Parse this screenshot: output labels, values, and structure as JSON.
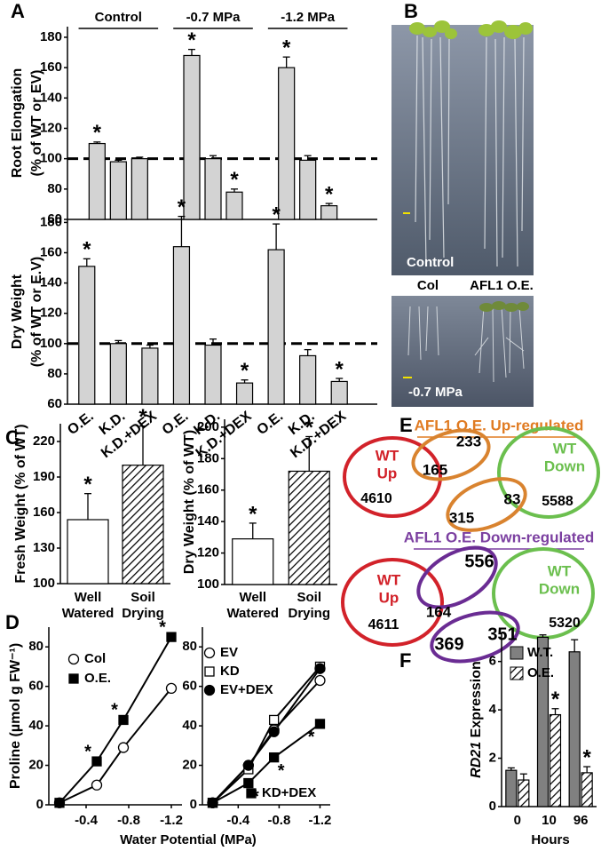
{
  "panel_labels": [
    "A",
    "B",
    "C",
    "D",
    "E",
    "F"
  ],
  "chart_data": [
    {
      "type": "bar",
      "ylabel": [
        "Root Elongation",
        "(% of WT or EV)"
      ],
      "groups": [
        "Control",
        "-0.7 MPa",
        "-1.2 MPa"
      ],
      "ylim": [
        60,
        187
      ],
      "yticks": [
        60,
        80,
        100,
        120,
        140,
        160,
        180
      ],
      "reference_line": 100,
      "series": [
        {
          "color": "#d3d3d3",
          "values": [
            110,
            98,
            100,
            168,
            100,
            78,
            160,
            99,
            69
          ],
          "errors": [
            1,
            1,
            1,
            4,
            2,
            2,
            7,
            3,
            1.5
          ],
          "markers": [
            "*",
            null,
            null,
            "*",
            null,
            "*",
            "*",
            null,
            "*"
          ]
        }
      ]
    },
    {
      "type": "bar",
      "ylabel": [
        "Dry Weight",
        "(% of WT or E.V)"
      ],
      "categories": [
        "O.E.",
        "K.D.",
        "K.D.+DEX",
        "O.E.",
        "K.D.",
        "K.D.+DEX",
        "O.E.",
        "K.D.",
        "K.D.+DEX"
      ],
      "ylim": [
        60,
        182
      ],
      "yticks": [
        60,
        80,
        100,
        120,
        140,
        160,
        180
      ],
      "reference_line": 100,
      "series": [
        {
          "color": "#d3d3d3",
          "values": [
            151,
            100,
            97,
            164,
            99,
            74,
            162,
            92,
            75
          ],
          "errors": [
            5,
            2,
            2,
            20,
            4,
            2,
            17,
            4,
            2
          ],
          "markers": [
            "*",
            null,
            null,
            "*",
            null,
            "*",
            "*",
            null,
            "*"
          ]
        }
      ]
    },
    {
      "type": "bar",
      "ylabel": [
        "Fresh Weight (% of WT)"
      ],
      "categories": [
        [
          "Well",
          "Watered"
        ],
        [
          "Soil",
          "Drying"
        ]
      ],
      "ylim": [
        100,
        235
      ],
      "yticks": [
        100,
        130,
        160,
        190,
        220
      ],
      "series": [
        {
          "color": "#ffffff",
          "hatch": [
            false,
            true
          ],
          "values": [
            154,
            200
          ],
          "errors": [
            22,
            33
          ],
          "markers": [
            "*",
            "*"
          ]
        }
      ]
    },
    {
      "type": "bar",
      "ylabel": [
        "Dry Weight (% of WT)"
      ],
      "categories": [
        [
          "Well",
          "Watered"
        ],
        [
          "Soil",
          "Drying"
        ]
      ],
      "ylim": [
        100,
        205
      ],
      "yticks": [
        100,
        120,
        140,
        160,
        180,
        200
      ],
      "series": [
        {
          "color": "#ffffff",
          "hatch": [
            false,
            true
          ],
          "values": [
            129,
            172
          ],
          "errors": [
            10,
            22
          ],
          "markers": [
            "*",
            "*"
          ]
        }
      ]
    },
    {
      "type": "line",
      "ylabel": [
        "Proline (µmol g FW⁻¹)"
      ],
      "xlabel": "Water Potential (MPa)",
      "x": [
        -0.15,
        -0.5,
        -0.75,
        -1.2
      ],
      "xlim": [
        -0.05,
        -1.3
      ],
      "xticks": [
        -0.4,
        -0.8,
        -1.2
      ],
      "ylim": [
        0,
        90
      ],
      "yticks": [
        0,
        20,
        40,
        60,
        80
      ],
      "series": [
        {
          "name": "Col",
          "marker": "circle",
          "filled": false,
          "values": [
            1,
            10,
            29,
            59
          ]
        },
        {
          "name": "O.E.",
          "marker": "square",
          "filled": true,
          "values": [
            1,
            22,
            43,
            85
          ],
          "markers": [
            null,
            "*",
            "*",
            "*"
          ]
        }
      ]
    },
    {
      "type": "line",
      "x": [
        -0.15,
        -0.5,
        -0.75,
        -1.2
      ],
      "xlim": [
        -0.05,
        -1.3
      ],
      "xticks": [
        -0.4,
        -0.8,
        -1.2
      ],
      "ylim": [
        0,
        90
      ],
      "yticks": [
        0,
        20,
        40,
        60,
        80
      ],
      "series": [
        {
          "name": "EV",
          "marker": "circle",
          "filled": false,
          "values": [
            1,
            20,
            38,
            63
          ]
        },
        {
          "name": "KD",
          "marker": "square",
          "filled": false,
          "values": [
            1,
            18,
            43,
            70
          ]
        },
        {
          "name": "EV+DEX",
          "marker": "circle",
          "filled": true,
          "values": [
            1,
            20,
            37,
            69
          ]
        },
        {
          "name": "KD+DEX",
          "marker": "square",
          "filled": true,
          "values": [
            1,
            11,
            24,
            41
          ],
          "markers": [
            null,
            "*",
            "*",
            "*"
          ]
        }
      ]
    },
    {
      "type": "bar",
      "ylabel": [
        "RD21",
        " Expression"
      ],
      "xlabel": "Hours",
      "categories": [
        "0",
        "10",
        "96"
      ],
      "ylim": [
        0,
        7.2
      ],
      "yticks": [
        0,
        2,
        4,
        6
      ],
      "series": [
        {
          "name": "W.T.",
          "color": "#808080",
          "values": [
            1.5,
            7.0,
            6.4
          ],
          "errors": [
            0.1,
            0.1,
            0.5
          ]
        },
        {
          "name": "O.E.",
          "color": "#ffffff",
          "hatch": true,
          "values": [
            1.1,
            3.8,
            1.4
          ],
          "errors": [
            0.25,
            0.25,
            0.25
          ],
          "markers": [
            null,
            "*",
            "*"
          ]
        }
      ]
    }
  ],
  "photos": {
    "top_caption": "Control",
    "genotypes": [
      "Col",
      "AFL1 O.E."
    ],
    "bottom_caption": "-0.7 MPa"
  },
  "venn": [
    {
      "title": "AFL1 O.E. Up-regulated",
      "wt_up": [
        "WT",
        "Up"
      ],
      "wt_up_count": 4610,
      "overlap_up": 165,
      "oe_a_only": 233,
      "oe_b_only": 315,
      "overlap_down": 83,
      "wt_down": [
        "WT",
        "Down"
      ],
      "wt_down_count": 5588
    },
    {
      "title": "AFL1 O.E. Down-regulated",
      "wt_up": [
        "WT",
        "Up"
      ],
      "wt_up_count": 4611,
      "overlap_up": 164,
      "oe_a_only": 556,
      "oe_b_only": 369,
      "overlap_down": 351,
      "wt_down": [
        "WT",
        "Down"
      ],
      "wt_down_count": 5320
    }
  ]
}
